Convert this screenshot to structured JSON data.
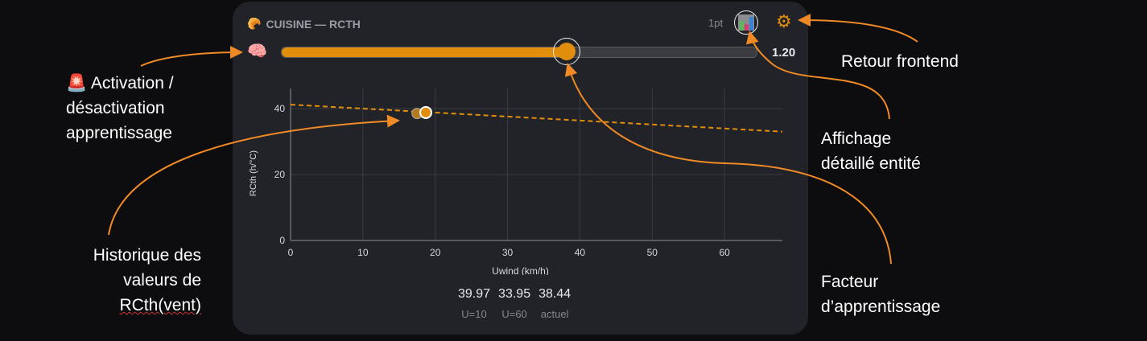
{
  "card": {
    "icon": "croissant-icon",
    "title": "CUISINE — RCTH",
    "points_label": "1pt",
    "learning_factor": 1.2,
    "learning_factor_label": "1.20",
    "learning_factor_fraction": 0.6
  },
  "stats": [
    {
      "value": "39.97",
      "label": "U=10"
    },
    {
      "value": "33.95",
      "label": "U=60"
    },
    {
      "value": "38.44",
      "label": "actuel"
    }
  ],
  "annotations": {
    "activation": [
      "Activation /",
      "désactivation",
      "apprentissage"
    ],
    "historique": [
      "Historique des",
      "valeurs de",
      "RCth(vent)"
    ],
    "retour": "Retour frontend",
    "affichage": [
      "Affichage",
      "détaillé entité"
    ],
    "facteur": [
      "Facteur",
      "d’apprentissage"
    ]
  },
  "chart_data": {
    "type": "scatter",
    "xlabel": "Uwind (km/h)",
    "ylabel": "RCth (h/°C)",
    "xlim": [
      0,
      68
    ],
    "ylim": [
      0,
      45
    ],
    "xticks": [
      "0",
      "10",
      "20",
      "30",
      "40",
      "50",
      "60"
    ],
    "yticks": [
      "0",
      "20",
      "40"
    ],
    "grid": true,
    "trend_line": {
      "x": [
        0,
        68
      ],
      "y": [
        41.2,
        33.0
      ],
      "style": "dashed",
      "color": "#e08e0b"
    },
    "history_points": [
      {
        "x": 17.5,
        "y": 38.5
      },
      {
        "x": 18.7,
        "y": 38.8
      }
    ],
    "colors": {
      "accent": "#e08e0b"
    }
  }
}
